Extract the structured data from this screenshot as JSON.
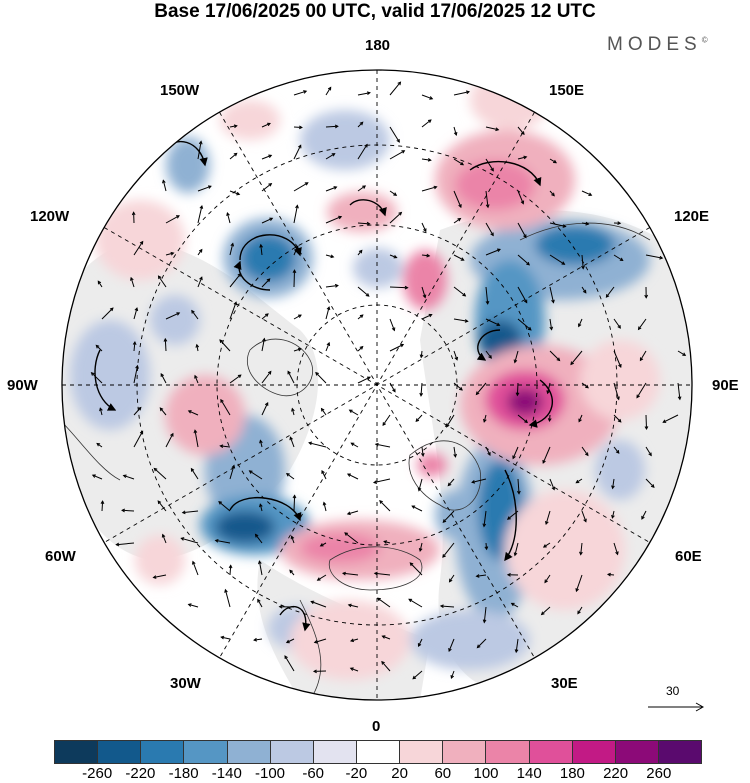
{
  "title": "Base 17/06/2025 00 UTC, valid 17/06/2025 12 UTC",
  "brand": "MODES",
  "brand_mark": "©",
  "longitude_labels": {
    "lon_180": "180",
    "lon_150w": "150W",
    "lon_150e": "150E",
    "lon_120w": "120W",
    "lon_120e": "120E",
    "lon_90w": "90W",
    "lon_90e": "90E",
    "lon_60w": "60W",
    "lon_60e": "60E",
    "lon_30w": "30W",
    "lon_30e": "30E",
    "lon_0": "0"
  },
  "reference_vector": "30",
  "colorbar": {
    "colors": [
      "#0d3a5c",
      "#12598c",
      "#2a7ab0",
      "#5596c4",
      "#8fb1d3",
      "#bcc9e3",
      "#e3e3f0",
      "#ffffff",
      "#f7d6d9",
      "#f0b0be",
      "#eb84a8",
      "#e0509a",
      "#c21a85",
      "#8c0a78",
      "#5a0a6e"
    ],
    "ticks": [
      "-260",
      "-220",
      "-180",
      "-140",
      "-100",
      "-60",
      "-20",
      "20",
      "60",
      "100",
      "140",
      "180",
      "220",
      "260"
    ]
  }
}
